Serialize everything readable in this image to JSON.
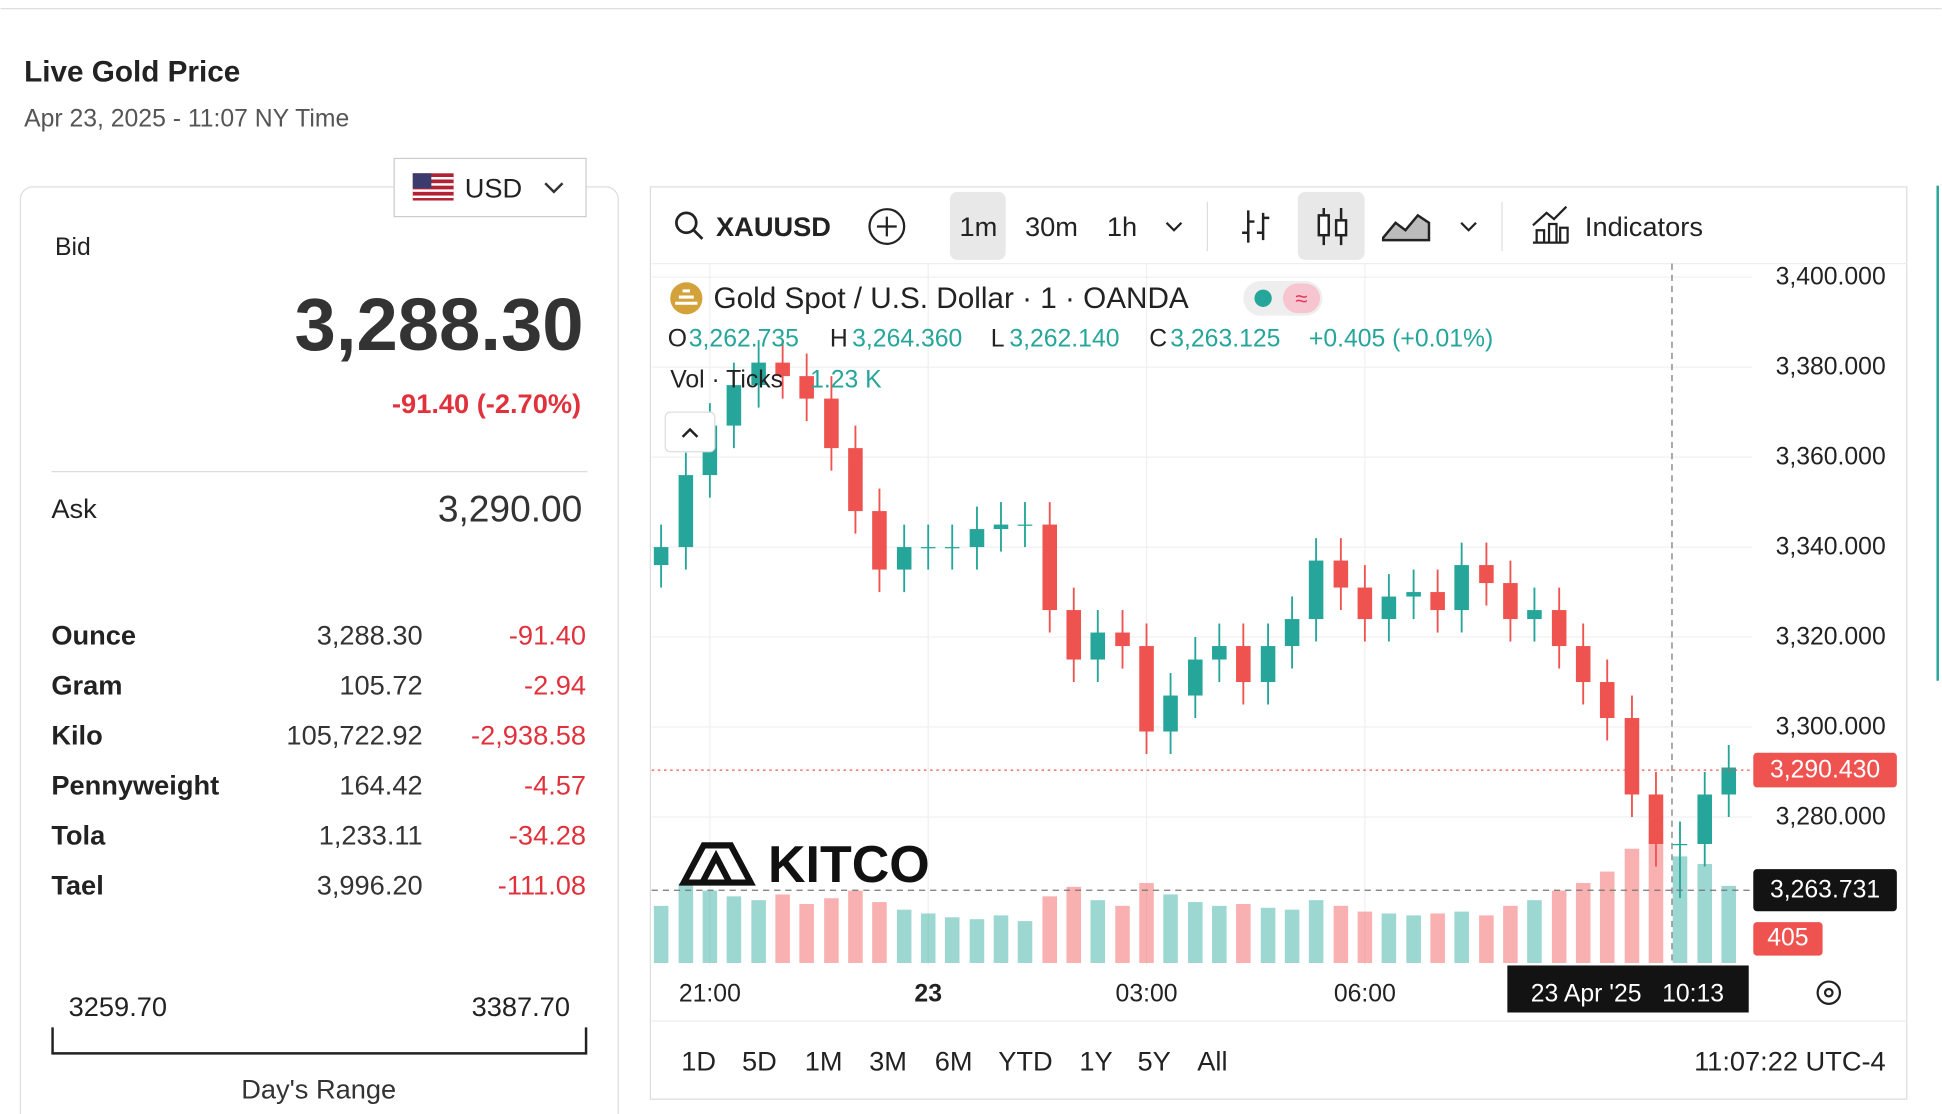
{
  "header": {
    "title": "Live Gold Price",
    "subtitle": "Apr 23, 2025 - 11:07 NY Time"
  },
  "currency": "USD",
  "quote": {
    "bid_label": "Bid",
    "bid": "3,288.30",
    "change": "-91.40 (-2.70%)",
    "ask_label": "Ask",
    "ask": "3,290.00"
  },
  "table": {
    "rows": [
      [
        "Ounce",
        "3,288.30",
        "-91.40"
      ],
      [
        "Gram",
        "105.72",
        "-2.94"
      ],
      [
        "Kilo",
        "105,722.92",
        "-2,938.58"
      ],
      [
        "Pennyweight",
        "164.42",
        "-4.57"
      ],
      [
        "Tola",
        "1,233.11",
        "-34.28"
      ],
      [
        "Tael",
        "3,996.20",
        "-111.08"
      ]
    ]
  },
  "range": {
    "low": "3259.70",
    "high": "3387.70",
    "label": "Day's Range"
  },
  "widget": {
    "symbol": "XAUUSD",
    "intervals": [
      "1m",
      "30m",
      "1h"
    ],
    "indicators": "Indicators",
    "legend_title": "Gold Spot / U.S. Dollar · 1 · OANDA",
    "ohlc": {
      "o_label": "O",
      "o": "3,262.735",
      "h_label": "H",
      "h": "3,264.360",
      "l_label": "L",
      "l": "3,262.140",
      "c_label": "C",
      "c": "3,263.125",
      "change": "+0.405 (+0.01%)"
    },
    "volume_label": "Vol · Ticks",
    "volume_value": "1.23 K",
    "logo": "KITCO",
    "ranges": [
      "1D",
      "5D",
      "1M",
      "3M",
      "6M",
      "YTD",
      "1Y",
      "5Y",
      "All"
    ],
    "clock": "11:07:22 UTC-4"
  },
  "chart_data": {
    "type": "candlestick",
    "x": [
      20.33,
      20.67,
      21,
      21.33,
      21.67,
      22,
      22.33,
      22.67,
      23,
      23.33,
      23.67,
      24,
      24.33,
      24.67,
      25,
      25.33,
      25.67,
      26,
      26.33,
      26.67,
      27,
      27.33,
      27.67,
      28,
      28.33,
      28.67,
      29,
      29.33,
      29.67,
      30,
      30.33,
      30.67,
      31,
      31.33,
      31.67,
      32,
      32.33,
      32.67,
      33,
      33.33,
      33.67,
      34,
      34.33,
      34.67,
      35
    ],
    "open": [
      3336,
      3340,
      3356,
      3367,
      3376,
      3381,
      3378,
      3373,
      3362,
      3348,
      3335,
      3340,
      3340,
      3340,
      3344,
      3345,
      3345,
      3326,
      3315,
      3321,
      3318,
      3299,
      3307,
      3315,
      3318,
      3310,
      3318,
      3324,
      3337,
      3331,
      3324,
      3329,
      3330,
      3326,
      3336,
      3332,
      3324,
      3326,
      3318,
      3310,
      3302,
      3285,
      3274,
      3274,
      3285
    ],
    "high": [
      3345,
      3361,
      3372,
      3381,
      3386,
      3386,
      3383,
      3378,
      3367,
      3353,
      3345,
      3345,
      3345,
      3349,
      3350,
      3350,
      3350,
      3331,
      3326,
      3326,
      3323,
      3312,
      3320,
      3323,
      3323,
      3323,
      3329,
      3342,
      3342,
      3336,
      3334,
      3335,
      3335,
      3341,
      3341,
      3337,
      3331,
      3331,
      3323,
      3315,
      3307,
      3290,
      3279,
      3290,
      3296
    ],
    "low": [
      3331,
      3335,
      3351,
      3362,
      3371,
      3373,
      3368,
      3357,
      3343,
      3330,
      3330,
      3335,
      3335,
      3335,
      3339,
      3340,
      3321,
      3310,
      3310,
      3313,
      3294,
      3294,
      3302,
      3310,
      3305,
      3305,
      3313,
      3319,
      3326,
      3319,
      3319,
      3324,
      3321,
      3321,
      3327,
      3319,
      3319,
      3313,
      3305,
      3297,
      3280,
      3269,
      3262,
      3269,
      3280
    ],
    "close": [
      3340,
      3356,
      3367,
      3376,
      3381,
      3378,
      3373,
      3362,
      3348,
      3335,
      3340,
      3340,
      3340,
      3344,
      3345,
      3345,
      3326,
      3315,
      3321,
      3318,
      3299,
      3307,
      3315,
      3318,
      3310,
      3318,
      3324,
      3337,
      3331,
      3324,
      3329,
      3330,
      3326,
      3336,
      3332,
      3324,
      3326,
      3318,
      3310,
      3302,
      3285,
      3274,
      3274,
      3285,
      3291
    ],
    "volume": [
      300,
      420,
      380,
      350,
      330,
      360,
      310,
      340,
      380,
      320,
      280,
      260,
      240,
      230,
      250,
      220,
      350,
      400,
      330,
      300,
      420,
      360,
      320,
      300,
      310,
      290,
      280,
      330,
      300,
      270,
      260,
      250,
      260,
      270,
      250,
      300,
      330,
      380,
      420,
      480,
      600,
      650,
      560,
      520,
      405
    ],
    "up_color": "#26a69a",
    "down_color": "#ef5350",
    "xlim": [
      20.2,
      35.32
    ],
    "xticks": [
      {
        "value": 21,
        "label": "21:00"
      },
      {
        "value": 24,
        "label": "23"
      },
      {
        "value": 27,
        "label": "03:00"
      },
      {
        "value": 30,
        "label": "06:00"
      }
    ],
    "ylim": [
      3247,
      3403
    ],
    "yticks": [
      {
        "value": 3280,
        "label": "3,280.000"
      },
      {
        "value": 3300,
        "label": "3,300.000"
      },
      {
        "value": 3320,
        "label": "3,320.000"
      },
      {
        "value": 3340,
        "label": "3,340.000"
      },
      {
        "value": 3360,
        "label": "3,360.000"
      },
      {
        "value": 3380,
        "label": "3,380.000"
      },
      {
        "value": 3400,
        "label": "3,400.000"
      }
    ],
    "grid": true,
    "last_price": {
      "value": 3290.43,
      "label": "3,290.430"
    },
    "crosshair_y": {
      "value": 3263.731,
      "label": "3,263.731"
    },
    "crosshair_x": {
      "value": 34.22,
      "label": "23 Apr '25   10:13"
    }
  }
}
